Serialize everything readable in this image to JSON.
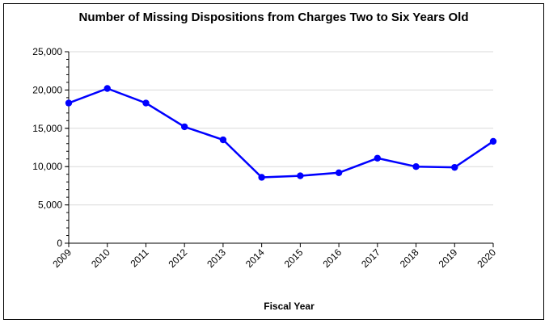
{
  "chart_data": {
    "type": "line",
    "title": "Number of Missing Dispositions from Charges Two to Six Years Old",
    "xlabel": "Fiscal Year",
    "ylabel": "",
    "categories": [
      "2009",
      "2010",
      "2011",
      "2012",
      "2013",
      "2014",
      "2015",
      "2016",
      "2017",
      "2018",
      "2019",
      "2020"
    ],
    "series": [
      {
        "values": [
          18300,
          20200,
          18300,
          15200,
          13500,
          8600,
          8800,
          9200,
          11100,
          10000,
          9900,
          13300
        ],
        "color": "#0000ff"
      }
    ],
    "ylim": [
      0,
      25000
    ],
    "yticks": [
      "0",
      "5,000",
      "10,000",
      "15,000",
      "20,000",
      "25,000"
    ],
    "grid": "horizontal",
    "legend": "none"
  }
}
